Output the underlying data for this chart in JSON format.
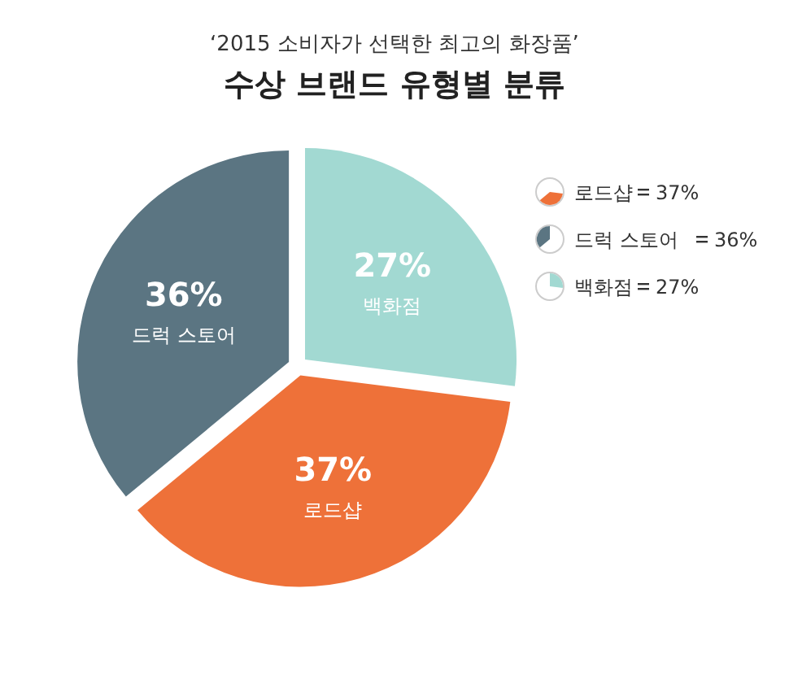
{
  "chart_data": {
    "type": "pie",
    "title": "‘2015 소비자가 선택한 최고의 화장품’",
    "subtitle": "수상 브랜드 유형별 분류",
    "categories": [
      "로드샵",
      "드럭 스토어",
      "백화점"
    ],
    "values": [
      37,
      36,
      27
    ],
    "value_labels": [
      "37%",
      "36%",
      "27%"
    ],
    "colors": [
      "#ee7139",
      "#5b7582",
      "#a2d9d2"
    ],
    "data_labels": true,
    "legend": "right"
  }
}
